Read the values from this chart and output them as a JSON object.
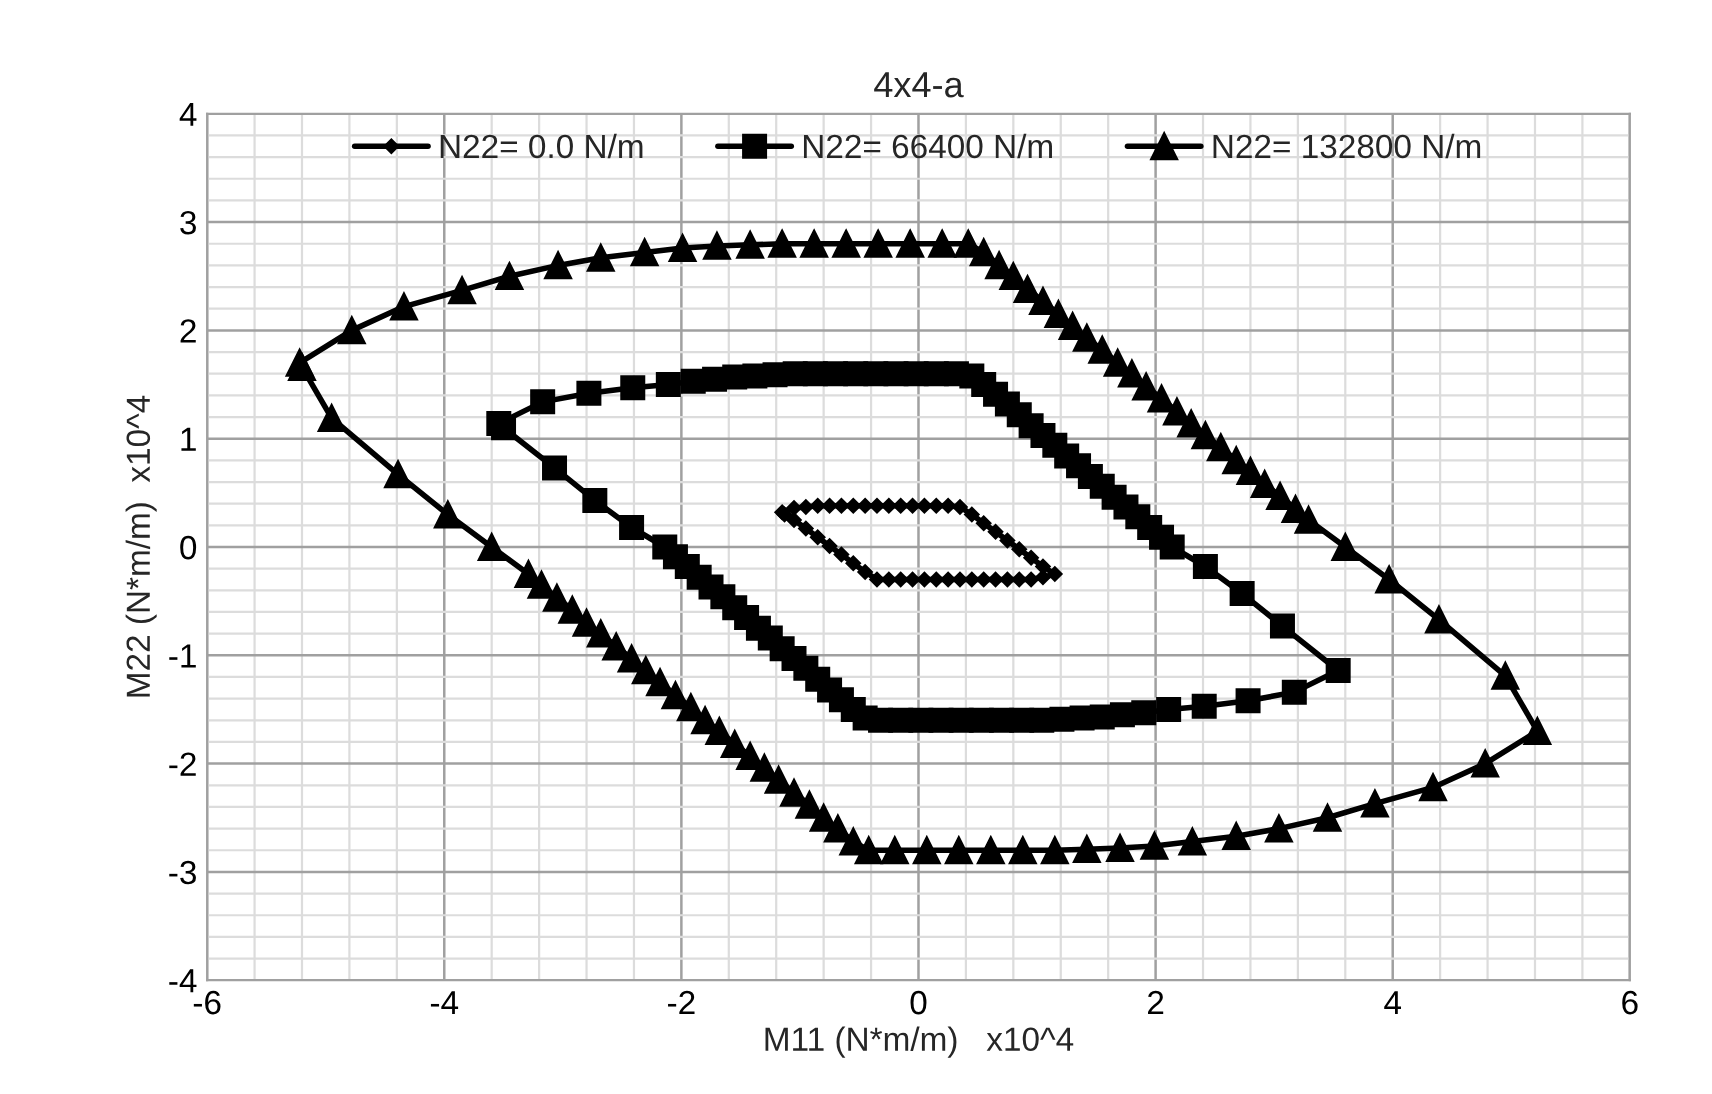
{
  "chart_data": {
    "type": "line",
    "title": "4x4-a",
    "xlabel": "M11 (N*m/m)   x10^4",
    "ylabel": "M22 (N*m/m)  x10^4",
    "xlim": [
      -6,
      6
    ],
    "xticks": [
      -6,
      -4,
      -2,
      0,
      2,
      4,
      6
    ],
    "ylim": [
      -4,
      4
    ],
    "yticks": [
      -4,
      -3,
      -2,
      -1,
      0,
      1,
      2,
      3,
      4
    ],
    "grid": true,
    "legend": "top",
    "line_style": "solid",
    "series": [
      {
        "name": "N22= 0.0 N/m",
        "color": "#000000",
        "marker": "diamond",
        "x": [
          -1.15,
          -1.05,
          -0.95,
          -0.85,
          -0.75,
          -0.65,
          -0.55,
          -0.45,
          -0.35,
          -0.25,
          -0.15,
          -0.05,
          0.05,
          0.15,
          0.25,
          0.35,
          0.45,
          0.55,
          0.65,
          0.75,
          0.85,
          0.95,
          1.05,
          1.15,
          1.05,
          0.95,
          0.85,
          0.75,
          0.65,
          0.55,
          0.45,
          0.35,
          0.25,
          0.15,
          0.05,
          -0.05,
          -0.15,
          -0.25,
          -0.35,
          -0.45,
          -0.55,
          -0.65,
          -0.75,
          -0.85,
          -0.95,
          -1.05,
          -1.13
        ],
        "values": [
          0.32,
          0.36,
          0.37,
          0.38,
          0.38,
          0.38,
          0.38,
          0.38,
          0.38,
          0.38,
          0.38,
          0.38,
          0.38,
          0.38,
          0.38,
          0.37,
          0.3,
          0.22,
          0.14,
          0.06,
          -0.02,
          -0.1,
          -0.18,
          -0.25,
          -0.28,
          -0.3,
          -0.3,
          -0.3,
          -0.3,
          -0.3,
          -0.3,
          -0.3,
          -0.3,
          -0.3,
          -0.3,
          -0.3,
          -0.3,
          -0.3,
          -0.3,
          -0.23,
          -0.15,
          -0.07,
          0.01,
          0.09,
          0.17,
          0.25,
          0.3
        ]
      },
      {
        "name": "N22= 66400 N/m",
        "color": "#000000",
        "marker": "square",
        "x": [
          -3.54,
          -3.17,
          -2.78,
          -2.41,
          -2.11,
          -1.9,
          -1.72,
          -1.55,
          -1.38,
          -1.21,
          -1.04,
          -0.87,
          -0.7,
          -0.53,
          -0.36,
          -0.19,
          -0.02,
          0.15,
          0.32,
          0.45,
          0.55,
          0.65,
          0.75,
          0.85,
          0.95,
          1.05,
          1.15,
          1.25,
          1.35,
          1.45,
          1.55,
          1.65,
          1.75,
          1.85,
          1.95,
          2.05,
          2.14,
          2.42,
          2.73,
          3.07,
          3.54,
          3.17,
          2.78,
          2.41,
          2.11,
          1.9,
          1.72,
          1.55,
          1.38,
          1.21,
          1.04,
          0.87,
          0.7,
          0.53,
          0.36,
          0.19,
          0.02,
          -0.15,
          -0.32,
          -0.45,
          -0.55,
          -0.65,
          -0.75,
          -0.85,
          -0.95,
          -1.05,
          -1.15,
          -1.25,
          -1.35,
          -1.45,
          -1.55,
          -1.65,
          -1.75,
          -1.85,
          -1.95,
          -2.05,
          -2.14,
          -2.42,
          -2.73,
          -3.07,
          -3.5
        ],
        "values": [
          1.14,
          1.34,
          1.42,
          1.47,
          1.5,
          1.53,
          1.55,
          1.57,
          1.58,
          1.59,
          1.6,
          1.6,
          1.6,
          1.6,
          1.6,
          1.6,
          1.6,
          1.6,
          1.6,
          1.58,
          1.5,
          1.41,
          1.32,
          1.22,
          1.12,
          1.03,
          0.94,
          0.84,
          0.75,
          0.65,
          0.56,
          0.46,
          0.37,
          0.28,
          0.18,
          0.09,
          0.0,
          -0.18,
          -0.43,
          -0.73,
          -1.14,
          -1.34,
          -1.42,
          -1.47,
          -1.5,
          -1.53,
          -1.55,
          -1.57,
          -1.58,
          -1.59,
          -1.6,
          -1.6,
          -1.6,
          -1.6,
          -1.6,
          -1.6,
          -1.6,
          -1.6,
          -1.6,
          -1.58,
          -1.5,
          -1.41,
          -1.32,
          -1.22,
          -1.12,
          -1.03,
          -0.94,
          -0.84,
          -0.75,
          -0.65,
          -0.56,
          -0.46,
          -0.37,
          -0.28,
          -0.18,
          -0.09,
          0.0,
          0.18,
          0.43,
          0.73,
          1.1
        ]
      },
      {
        "name": "N22= 132800 N/m",
        "color": "#000000",
        "marker": "triangle",
        "x": [
          -5.22,
          -4.78,
          -4.34,
          -3.85,
          -3.45,
          -3.04,
          -2.68,
          -2.31,
          -1.99,
          -1.7,
          -1.42,
          -1.15,
          -0.88,
          -0.61,
          -0.34,
          -0.07,
          0.2,
          0.42,
          0.55,
          0.68,
          0.8,
          0.92,
          1.05,
          1.18,
          1.3,
          1.42,
          1.55,
          1.68,
          1.8,
          1.92,
          2.05,
          2.18,
          2.3,
          2.42,
          2.55,
          2.68,
          2.8,
          2.92,
          3.05,
          3.18,
          3.29,
          3.6,
          3.97,
          4.39,
          4.95,
          5.22,
          4.78,
          4.34,
          3.85,
          3.45,
          3.04,
          2.68,
          2.31,
          1.99,
          1.7,
          1.42,
          1.15,
          0.88,
          0.61,
          0.34,
          0.07,
          -0.2,
          -0.42,
          -0.55,
          -0.68,
          -0.8,
          -0.92,
          -1.05,
          -1.18,
          -1.3,
          -1.42,
          -1.55,
          -1.68,
          -1.8,
          -1.92,
          -2.05,
          -2.18,
          -2.3,
          -2.42,
          -2.55,
          -2.68,
          -2.8,
          -2.92,
          -3.05,
          -3.18,
          -3.29,
          -3.6,
          -3.97,
          -4.39,
          -4.95,
          -5.2
        ],
        "values": [
          1.7,
          2.0,
          2.22,
          2.37,
          2.5,
          2.6,
          2.67,
          2.72,
          2.76,
          2.78,
          2.79,
          2.8,
          2.8,
          2.8,
          2.8,
          2.8,
          2.8,
          2.8,
          2.72,
          2.6,
          2.5,
          2.38,
          2.27,
          2.15,
          2.04,
          1.93,
          1.82,
          1.7,
          1.6,
          1.48,
          1.37,
          1.25,
          1.14,
          1.03,
          0.92,
          0.8,
          0.7,
          0.58,
          0.47,
          0.35,
          0.25,
          0.0,
          -0.3,
          -0.67,
          -1.19,
          -1.7,
          -2.0,
          -2.22,
          -2.37,
          -2.5,
          -2.6,
          -2.67,
          -2.72,
          -2.76,
          -2.78,
          -2.79,
          -2.8,
          -2.8,
          -2.8,
          -2.8,
          -2.8,
          -2.8,
          -2.8,
          -2.72,
          -2.6,
          -2.5,
          -2.38,
          -2.27,
          -2.15,
          -2.04,
          -1.93,
          -1.82,
          -1.7,
          -1.6,
          -1.48,
          -1.37,
          -1.25,
          -1.14,
          -1.03,
          -0.92,
          -0.8,
          -0.7,
          -0.58,
          -0.47,
          -0.35,
          -0.25,
          0.0,
          0.3,
          0.67,
          1.19,
          1.66
        ]
      }
    ]
  }
}
